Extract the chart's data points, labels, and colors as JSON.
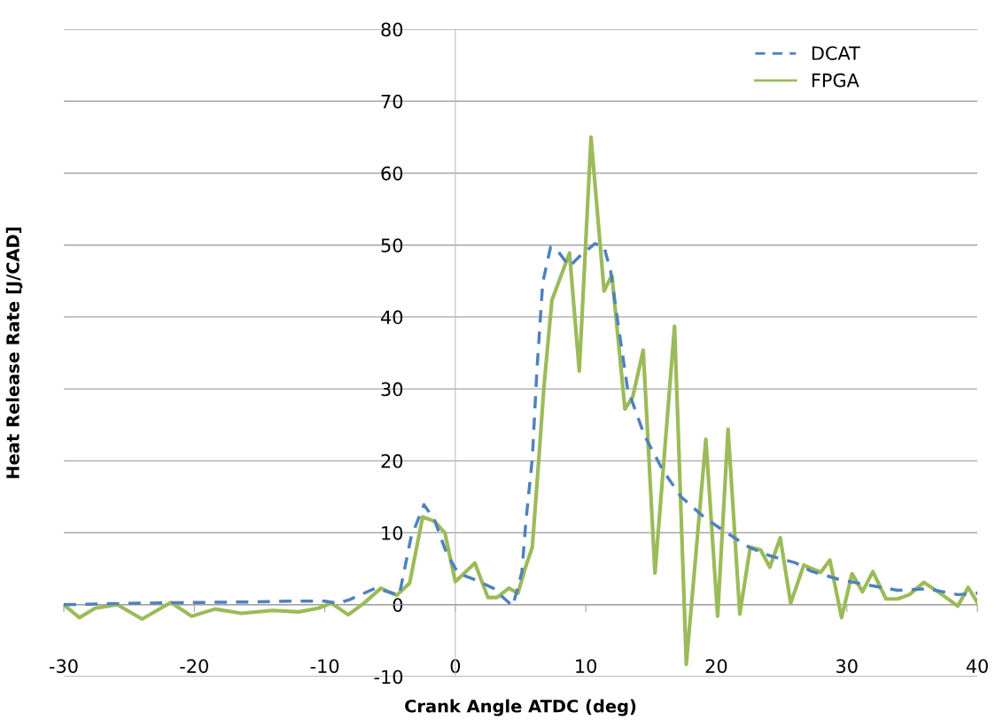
{
  "chart_data": {
    "type": "line",
    "xlabel": "Crank Angle ATDC (deg)",
    "ylabel": "Heat Release Rate [J/CAD]",
    "xlim": [
      -30,
      40
    ],
    "xticks": [
      -30,
      -20,
      -10,
      0,
      10,
      20,
      30,
      40
    ],
    "ylim": [
      -10,
      80
    ],
    "yticks": [
      -10,
      0,
      10,
      20,
      30,
      40,
      50,
      60,
      70,
      80
    ],
    "grid": "y",
    "legend": "top right",
    "series": [
      {
        "name": "DCAT",
        "color": "#4f81bd",
        "line_style": "dashed",
        "x": [
          -30,
          -25,
          -20,
          -15,
          -12,
          -10,
          -9,
          -8.1,
          -6.1,
          -4.3,
          -3.4,
          -2.4,
          -1.6,
          -0.7,
          0.2,
          1.6,
          2.9,
          3.6,
          4.4,
          5.1,
          5.4,
          5.9,
          6.25,
          6.7,
          7.3,
          7.8,
          8.75,
          9.5,
          10.7,
          11.4,
          11.9,
          12.5,
          13.2,
          14.5,
          15.9,
          17.3,
          19.1,
          20.7,
          22.5,
          24.1,
          26.1,
          27.2,
          29.4,
          31.7,
          33.9,
          36.2,
          38.5,
          40
        ],
        "values": [
          0,
          0.2,
          0.3,
          0.4,
          0.5,
          0.5,
          0.2,
          0.7,
          2.3,
          1.3,
          9.3,
          13.9,
          11.8,
          7.3,
          4.4,
          3.4,
          2.3,
          1.1,
          -0.2,
          4.5,
          11.4,
          20.3,
          32.5,
          44.8,
          49.7,
          49.3,
          47,
          48.4,
          50.2,
          49.7,
          46.4,
          38.7,
          30,
          23.5,
          18.7,
          15,
          12.1,
          10.1,
          8,
          6.8,
          5.8,
          4.7,
          3.5,
          2.7,
          2,
          2.2,
          1.4,
          1.6
        ]
      },
      {
        "name": "FPGA",
        "color": "#9bbb59",
        "line_style": "solid",
        "x": [
          -30,
          -28.8,
          -27.6,
          -25.9,
          -24,
          -21.8,
          -20.2,
          -18.4,
          -16.4,
          -14,
          -12,
          -10.5,
          -9.5,
          -8.2,
          -7,
          -5.7,
          -4.5,
          -3.5,
          -2.5,
          -1.6,
          -0.8,
          0,
          1.5,
          2.5,
          3.2,
          4.1,
          4.8,
          5.4,
          5.9,
          6.4,
          6.8,
          7.4,
          8.75,
          9.5,
          10.4,
          11.4,
          12,
          13,
          13.6,
          14.4,
          15.3,
          16.8,
          17.7,
          19.2,
          20.1,
          20.9,
          21.8,
          22.6,
          23.4,
          24.1,
          24.9,
          25.7,
          26.7,
          28.0,
          28.7,
          29.6,
          30.4,
          31.2,
          32,
          33,
          33.9,
          34.8,
          35.9,
          37.3,
          38.5,
          39.3,
          40
        ],
        "values": [
          0,
          -1.8,
          -0.5,
          0,
          -2,
          0.3,
          -1.6,
          -0.6,
          -1.2,
          -0.8,
          -1,
          -0.5,
          0.2,
          -1.4,
          0.2,
          2.3,
          1.3,
          3,
          12.2,
          11.6,
          10,
          3.2,
          5.8,
          1,
          1,
          2.3,
          1.6,
          5.3,
          8,
          20.3,
          30.5,
          42.3,
          48.9,
          32.5,
          65,
          43.6,
          45.8,
          27.2,
          28.9,
          35.4,
          4.4,
          38.7,
          -8.3,
          23,
          -1.6,
          24.4,
          -1.3,
          8,
          7.6,
          5.2,
          9.3,
          0.2,
          5.5,
          4.5,
          6.2,
          -1.8,
          4.3,
          1.8,
          4.6,
          0.8,
          0.8,
          1.4,
          3.1,
          1.4,
          -0.2,
          2.4,
          0.3
        ]
      }
    ]
  }
}
